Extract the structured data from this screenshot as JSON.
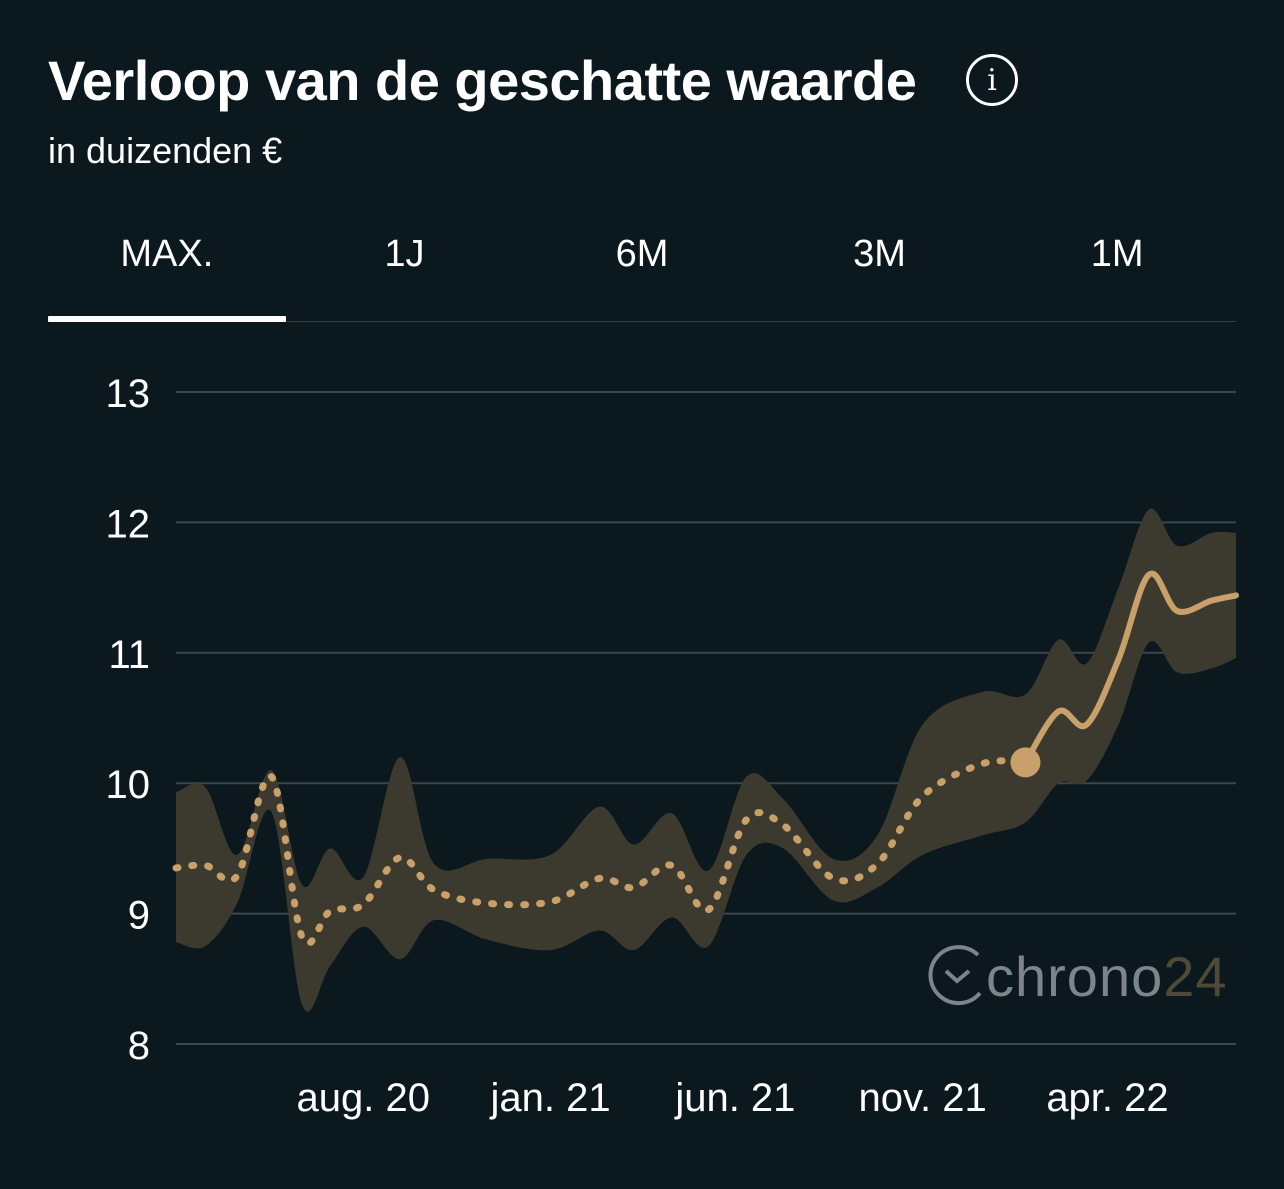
{
  "header": {
    "title": "Verloop van de geschatte waarde",
    "subtitle": "in duizenden €"
  },
  "tabs": [
    {
      "label": "MAX.",
      "active": true
    },
    {
      "label": "1J",
      "active": false
    },
    {
      "label": "6M",
      "active": false
    },
    {
      "label": "3M",
      "active": false
    },
    {
      "label": "1M",
      "active": false
    }
  ],
  "watermark": {
    "brand": "chrono",
    "number": "24"
  },
  "colors": {
    "background": "#0b181e",
    "line": "#c9a06a",
    "band": "#3c3a2e",
    "grid": "#3a474d"
  },
  "chart_data": {
    "type": "line",
    "title": "Verloop van de geschatte waarde",
    "subtitle": "in duizenden €",
    "x_ticks": [
      {
        "label": "aug. 20",
        "date": "2020-08-01"
      },
      {
        "label": "jan. 21",
        "date": "2021-01-01"
      },
      {
        "label": "jun. 21",
        "date": "2021-06-01"
      },
      {
        "label": "nov. 21",
        "date": "2021-11-01"
      },
      {
        "label": "apr. 22",
        "date": "2022-04-01"
      }
    ],
    "xlim": [
      "2020-03-01",
      "2022-07-15"
    ],
    "ylim": [
      8,
      13
    ],
    "y_ticks": [
      8,
      9,
      10,
      11,
      12,
      13
    ],
    "grid": true,
    "marker": {
      "date": "2022-01-24",
      "value": 10.16
    },
    "series": [
      {
        "style": "dotted line = history, solid line = forecast, shaded band = range",
        "points": [
          {
            "date": "2020-03-01",
            "value": 9.35,
            "low": 8.78,
            "high": 9.93
          },
          {
            "date": "2020-03-25",
            "value": 9.37,
            "low": 8.75,
            "high": 9.97
          },
          {
            "date": "2020-04-20",
            "value": 9.29,
            "low": 9.08,
            "high": 9.45
          },
          {
            "date": "2020-05-18",
            "value": 10.05,
            "low": 9.78,
            "high": 10.1
          },
          {
            "date": "2020-06-12",
            "value": 8.82,
            "low": 8.3,
            "high": 9.22
          },
          {
            "date": "2020-07-05",
            "value": 9.02,
            "low": 8.6,
            "high": 9.5
          },
          {
            "date": "2020-08-01",
            "value": 9.07,
            "low": 8.9,
            "high": 9.28
          },
          {
            "date": "2020-08-31",
            "value": 9.43,
            "low": 8.65,
            "high": 10.2
          },
          {
            "date": "2020-09-28",
            "value": 9.18,
            "low": 8.95,
            "high": 9.38
          },
          {
            "date": "2020-11-10",
            "value": 9.08,
            "low": 8.8,
            "high": 9.42
          },
          {
            "date": "2021-01-01",
            "value": 9.09,
            "low": 8.72,
            "high": 9.45
          },
          {
            "date": "2021-02-10",
            "value": 9.27,
            "low": 8.87,
            "high": 9.82
          },
          {
            "date": "2021-03-10",
            "value": 9.2,
            "low": 8.72,
            "high": 9.53
          },
          {
            "date": "2021-04-10",
            "value": 9.37,
            "low": 8.97,
            "high": 9.77
          },
          {
            "date": "2021-05-10",
            "value": 9.03,
            "low": 8.75,
            "high": 9.33
          },
          {
            "date": "2021-06-10",
            "value": 9.72,
            "low": 9.45,
            "high": 10.05
          },
          {
            "date": "2021-07-10",
            "value": 9.68,
            "low": 9.5,
            "high": 9.88
          },
          {
            "date": "2021-08-20",
            "value": 9.27,
            "low": 9.1,
            "high": 9.42
          },
          {
            "date": "2021-09-25",
            "value": 9.38,
            "low": 9.2,
            "high": 9.6
          },
          {
            "date": "2021-11-01",
            "value": 9.9,
            "low": 9.45,
            "high": 10.45
          },
          {
            "date": "2021-12-20",
            "value": 10.15,
            "low": 9.6,
            "high": 10.7
          },
          {
            "date": "2022-01-24",
            "value": 10.16,
            "low": 9.7,
            "high": 10.68
          }
        ],
        "forecast": [
          {
            "date": "2022-01-24",
            "value": 10.16,
            "low": 9.7,
            "high": 10.68
          },
          {
            "date": "2022-02-20",
            "value": 10.55,
            "low": 10.0,
            "high": 11.1
          },
          {
            "date": "2022-03-15",
            "value": 10.45,
            "low": 10.02,
            "high": 10.92
          },
          {
            "date": "2022-04-10",
            "value": 10.95,
            "low": 10.45,
            "high": 11.5
          },
          {
            "date": "2022-05-05",
            "value": 11.6,
            "low": 11.08,
            "high": 12.1
          },
          {
            "date": "2022-05-28",
            "value": 11.32,
            "low": 10.85,
            "high": 11.82
          },
          {
            "date": "2022-06-25",
            "value": 11.4,
            "low": 10.88,
            "high": 11.92
          },
          {
            "date": "2022-07-15",
            "value": 11.44,
            "low": 10.96,
            "high": 11.92
          }
        ]
      }
    ]
  }
}
